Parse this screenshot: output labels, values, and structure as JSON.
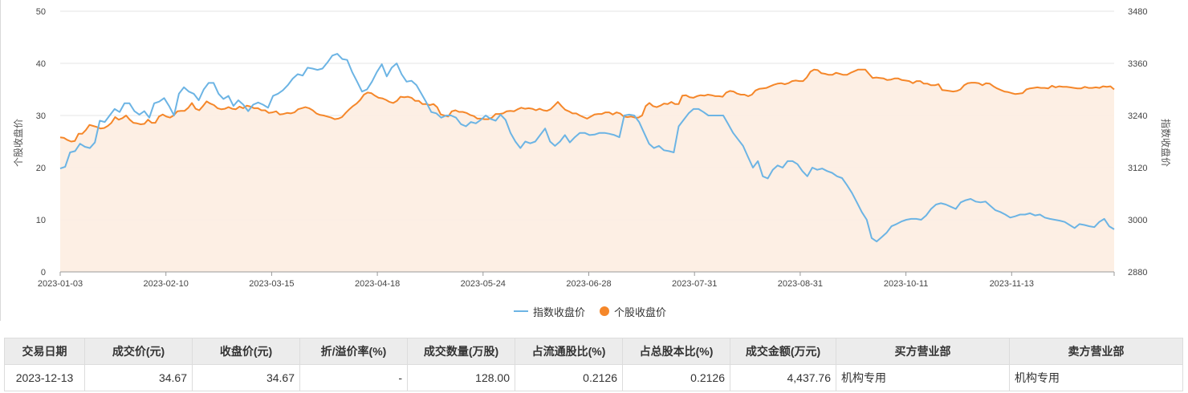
{
  "chart_data": {
    "type": "line",
    "x_ticks": [
      "2023-01-03",
      "2023-02-10",
      "2023-03-15",
      "2023-04-18",
      "2023-05-24",
      "2023-06-28",
      "2023-07-31",
      "2023-08-31",
      "2023-10-11",
      "2023-11-13"
    ],
    "left_axis": {
      "label": "个股收盘价",
      "ticks": [
        0,
        10,
        20,
        30,
        40,
        50
      ],
      "range": [
        0,
        50
      ]
    },
    "right_axis": {
      "label": "指数收盘价",
      "ticks": [
        2880,
        3000,
        3120,
        3240,
        3360,
        3480
      ],
      "range": [
        2880,
        3480
      ]
    },
    "series": [
      {
        "name": "指数收盘价",
        "axis": "right",
        "color": "#6cb4e4",
        "values": [
          3118,
          3122,
          3155,
          3158,
          3175,
          3168,
          3165,
          3178,
          3228,
          3225,
          3240,
          3255,
          3248,
          3268,
          3268,
          3250,
          3242,
          3250,
          3235,
          3268,
          3272,
          3280,
          3262,
          3240,
          3290,
          3305,
          3295,
          3290,
          3275,
          3300,
          3315,
          3315,
          3290,
          3278,
          3285,
          3262,
          3275,
          3265,
          3250,
          3265,
          3270,
          3265,
          3258,
          3285,
          3290,
          3298,
          3310,
          3325,
          3335,
          3332,
          3350,
          3348,
          3345,
          3348,
          3362,
          3378,
          3382,
          3370,
          3368,
          3340,
          3318,
          3295,
          3300,
          3318,
          3340,
          3358,
          3330,
          3350,
          3360,
          3335,
          3318,
          3320,
          3310,
          3290,
          3270,
          3248,
          3245,
          3235,
          3240,
          3240,
          3235,
          3220,
          3215,
          3225,
          3222,
          3230,
          3240,
          3232,
          3228,
          3242,
          3230,
          3200,
          3180,
          3165,
          3180,
          3176,
          3180,
          3195,
          3210,
          3180,
          3170,
          3180,
          3195,
          3178,
          3190,
          3200,
          3200,
          3195,
          3196,
          3200,
          3200,
          3198,
          3195,
          3190,
          3240,
          3242,
          3240,
          3225,
          3200,
          3175,
          3165,
          3170,
          3160,
          3158,
          3155,
          3215,
          3230,
          3245,
          3255,
          3255,
          3248,
          3240,
          3240,
          3240,
          3240,
          3220,
          3200,
          3185,
          3170,
          3145,
          3120,
          3135,
          3100,
          3095,
          3115,
          3125,
          3120,
          3135,
          3135,
          3128,
          3112,
          3100,
          3120,
          3115,
          3118,
          3112,
          3108,
          3100,
          3096,
          3080,
          3062,
          3040,
          3018,
          3000,
          2958,
          2950,
          2960,
          2970,
          2985,
          2990,
          2996,
          3000,
          3002,
          3002,
          3000,
          3010,
          3025,
          3035,
          3038,
          3035,
          3030,
          3025,
          3040,
          3045,
          3048,
          3042,
          3040,
          3042,
          3032,
          3022,
          3018,
          3012,
          3005,
          3008,
          3012,
          3012,
          3015,
          3010,
          3012,
          3005,
          3002,
          3000,
          2998,
          2995,
          2988,
          2981,
          2990,
          2988,
          2985,
          2983,
          2995,
          3002,
          2985,
          2978
        ],
        "values_note": ""
      },
      {
        "name": "个股收盘价",
        "axis": "left",
        "color": "#f5872a",
        "values": [
          25.8,
          25.7,
          25.3,
          25.0,
          25.1,
          26.5,
          26.5,
          27.2,
          28.2,
          28.0,
          27.8,
          27.5,
          27.6,
          28.0,
          28.6,
          29.7,
          29.2,
          29.5,
          30.0,
          29.2,
          28.6,
          28.5,
          28.3,
          28.4,
          29.2,
          28.6,
          28.6,
          29.8,
          30.2,
          29.8,
          29.6,
          30.0,
          30.8,
          30.9,
          30.9,
          31.5,
          32.4,
          31.3,
          31.0,
          31.8,
          32.7,
          32.3,
          32.0,
          31.4,
          31.2,
          31.3,
          31.6,
          31.3,
          31.2,
          31.7,
          31.4,
          31.9,
          31.7,
          31.4,
          31.4,
          31.0,
          31.0,
          30.5,
          30.6,
          30.8,
          30.2,
          30.3,
          30.5,
          30.4,
          30.6,
          31.2,
          31.4,
          31.6,
          31.4,
          31.0,
          30.4,
          30.1,
          30.0,
          29.8,
          29.6,
          29.3,
          29.4,
          29.7,
          30.5,
          31.2,
          31.8,
          32.3,
          33.0,
          34.0,
          34.4,
          34.3,
          33.8,
          33.4,
          33.3,
          33.0,
          32.6,
          32.4,
          32.8,
          33.6,
          33.5,
          33.6,
          33.4,
          32.8,
          32.8,
          32.2,
          32.2,
          32.0,
          32.2,
          31.6,
          30.2,
          30.0,
          29.8,
          30.8,
          31.0,
          30.7,
          30.7,
          30.5,
          30.1,
          29.9,
          29.4,
          29.4,
          29.3,
          29.3,
          29.6,
          30.3,
          30.3,
          30.4,
          30.8,
          30.9,
          30.8,
          31.2,
          31.5,
          31.3,
          31.4,
          31.3,
          31.0,
          31.3,
          31.0,
          30.9,
          31.2,
          31.9,
          32.6,
          31.8,
          31.1,
          30.8,
          30.4,
          30.4,
          30.0,
          29.7,
          29.4,
          29.8,
          30.2,
          30.3,
          30.3,
          30.6,
          30.6,
          30.2,
          30.6,
          30.4,
          29.8,
          29.7,
          29.8,
          29.6,
          29.6,
          30.0,
          31.8,
          32.4,
          31.8,
          31.6,
          31.9,
          32.3,
          32.2,
          32.6,
          32.2,
          32.2,
          33.8,
          33.9,
          33.5,
          33.4,
          33.7,
          33.9,
          33.8,
          34.0,
          33.9,
          33.7,
          33.7,
          33.6,
          34.4,
          34.7,
          34.6,
          34.2,
          34.0,
          34.0,
          33.7,
          34.0,
          34.8,
          35.1,
          35.2,
          35.3,
          35.6,
          35.9,
          36.1,
          36.2,
          36.0,
          36.2,
          36.6,
          36.7,
          36.6,
          36.6,
          37.3,
          38.4,
          38.8,
          38.7,
          38.1,
          38.0,
          37.8,
          37.8,
          38.2,
          38.0,
          37.8,
          37.8,
          38.2,
          38.5,
          38.8,
          38.8,
          38.8,
          38.0,
          37.2,
          37.3,
          37.2,
          37.1,
          36.8,
          36.9,
          37.1,
          37.1,
          36.8,
          36.7,
          36.6,
          36.2,
          36.6,
          36.6,
          36.1,
          36.1,
          35.8,
          35.8,
          36.0,
          34.9,
          34.8,
          34.7,
          34.6,
          34.7,
          35.0,
          35.8,
          36.2,
          36.3,
          36.3,
          36.2,
          35.8,
          36.2,
          36.1,
          35.6,
          35.2,
          34.9,
          34.6,
          34.5,
          34.3,
          34.1,
          34.2,
          34.3,
          35.0,
          35.2,
          35.3,
          35.4,
          35.3,
          35.3,
          35.2,
          35.7,
          35.4,
          35.6,
          35.5,
          35.5,
          35.4,
          35.3,
          35.2,
          35.2,
          35.5,
          35.3,
          35.3,
          35.4,
          35.3,
          35.6,
          35.5,
          35.6,
          35.0
        ]
      }
    ]
  },
  "legend": {
    "index_label": "指数收盘价",
    "stock_label": "个股收盘价"
  },
  "table": {
    "headers": [
      "交易日期",
      "成交价(元)",
      "收盘价(元)",
      "折/溢价率(%)",
      "成交数量(万股)",
      "占流通股比(%)",
      "占总股本比(%)",
      "成交金额(万元)",
      "买方营业部",
      "卖方营业部"
    ],
    "rows": [
      [
        "2023-12-13",
        "34.67",
        "34.67",
        "-",
        "128.00",
        "0.2126",
        "0.2126",
        "4,437.76",
        "机构专用",
        "机构专用"
      ]
    ]
  }
}
